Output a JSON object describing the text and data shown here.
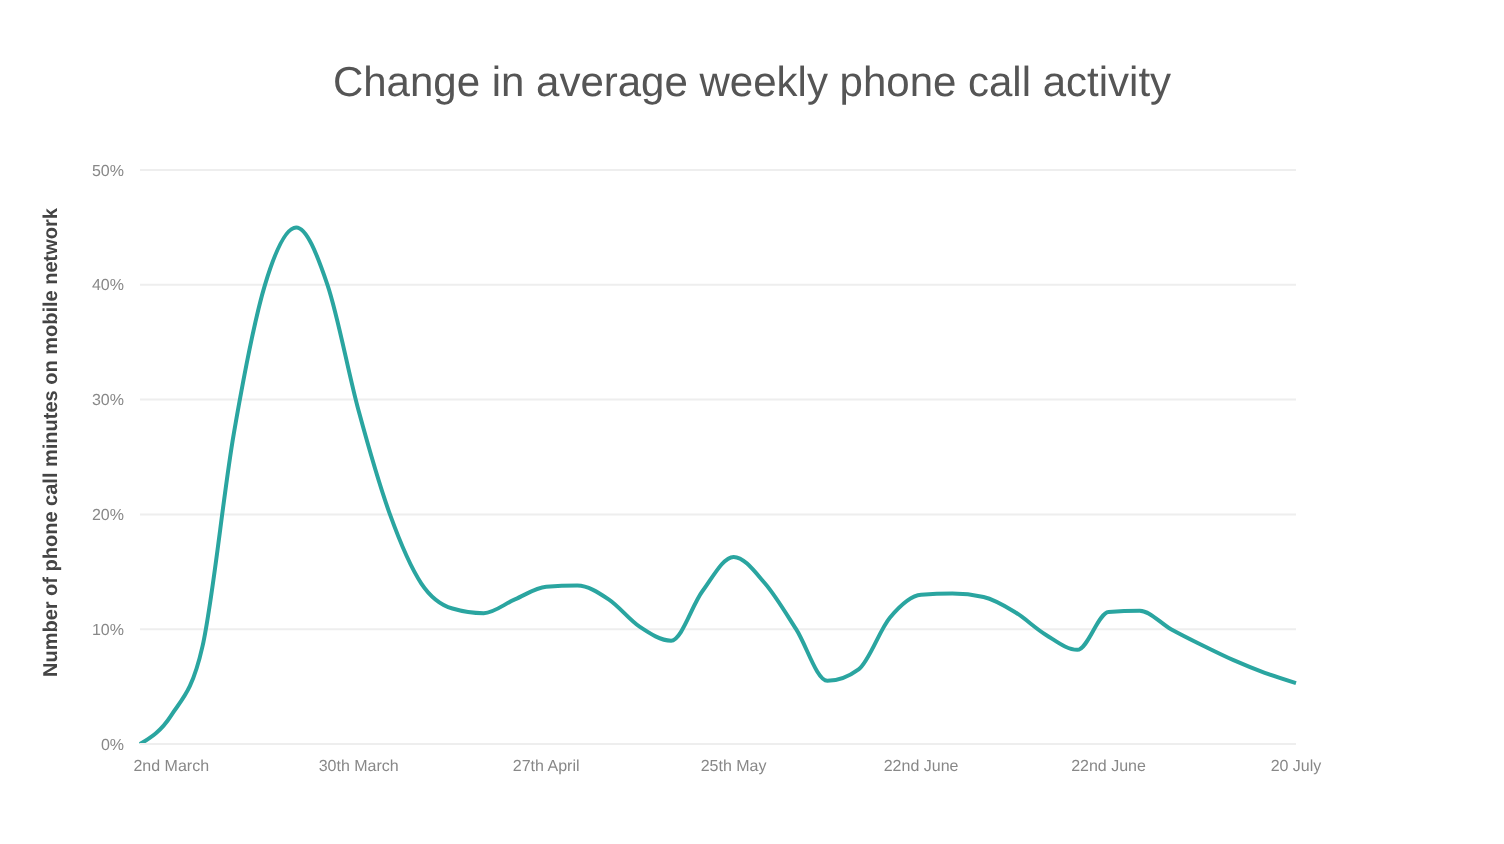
{
  "chart_data": {
    "type": "line",
    "title": "Change in average weekly phone call activity",
    "ylabel": "Number of phone call minutes on mobile network",
    "categories": [
      null,
      "2nd March",
      null,
      null,
      null,
      null,
      null,
      "30th March",
      null,
      null,
      null,
      null,
      null,
      "27th April",
      null,
      null,
      null,
      null,
      null,
      "25th May",
      null,
      null,
      null,
      null,
      null,
      "22nd June",
      null,
      null,
      null,
      null,
      null,
      "22nd June",
      null,
      null,
      null,
      null,
      null,
      "20 July"
    ],
    "series": [
      {
        "color": "#2aa5a0",
        "values": [
          0,
          2.5,
          8.5,
          27,
          40,
          45,
          40,
          29,
          20,
          14,
          11.8,
          11.4,
          12.6,
          13.7,
          13.8,
          12.6,
          10.2,
          9,
          13.3,
          16.3,
          14,
          10,
          5.5,
          6.5,
          11,
          13,
          13.1,
          12.8,
          11.5,
          9.5,
          8.2,
          11.5,
          11.6,
          10,
          8.6,
          7.3,
          6.2,
          5.3
        ]
      }
    ],
    "ylim": [
      0,
      50
    ],
    "yticks": [
      {
        "value": 0,
        "label": "0%"
      },
      {
        "value": 10,
        "label": "10%"
      },
      {
        "value": 20,
        "label": "20%"
      },
      {
        "value": 30,
        "label": "30%"
      },
      {
        "value": 40,
        "label": "40%"
      },
      {
        "value": 50,
        "label": "50%"
      }
    ],
    "grid": "y",
    "legend": false,
    "marker": "none",
    "line_style": "solid"
  }
}
